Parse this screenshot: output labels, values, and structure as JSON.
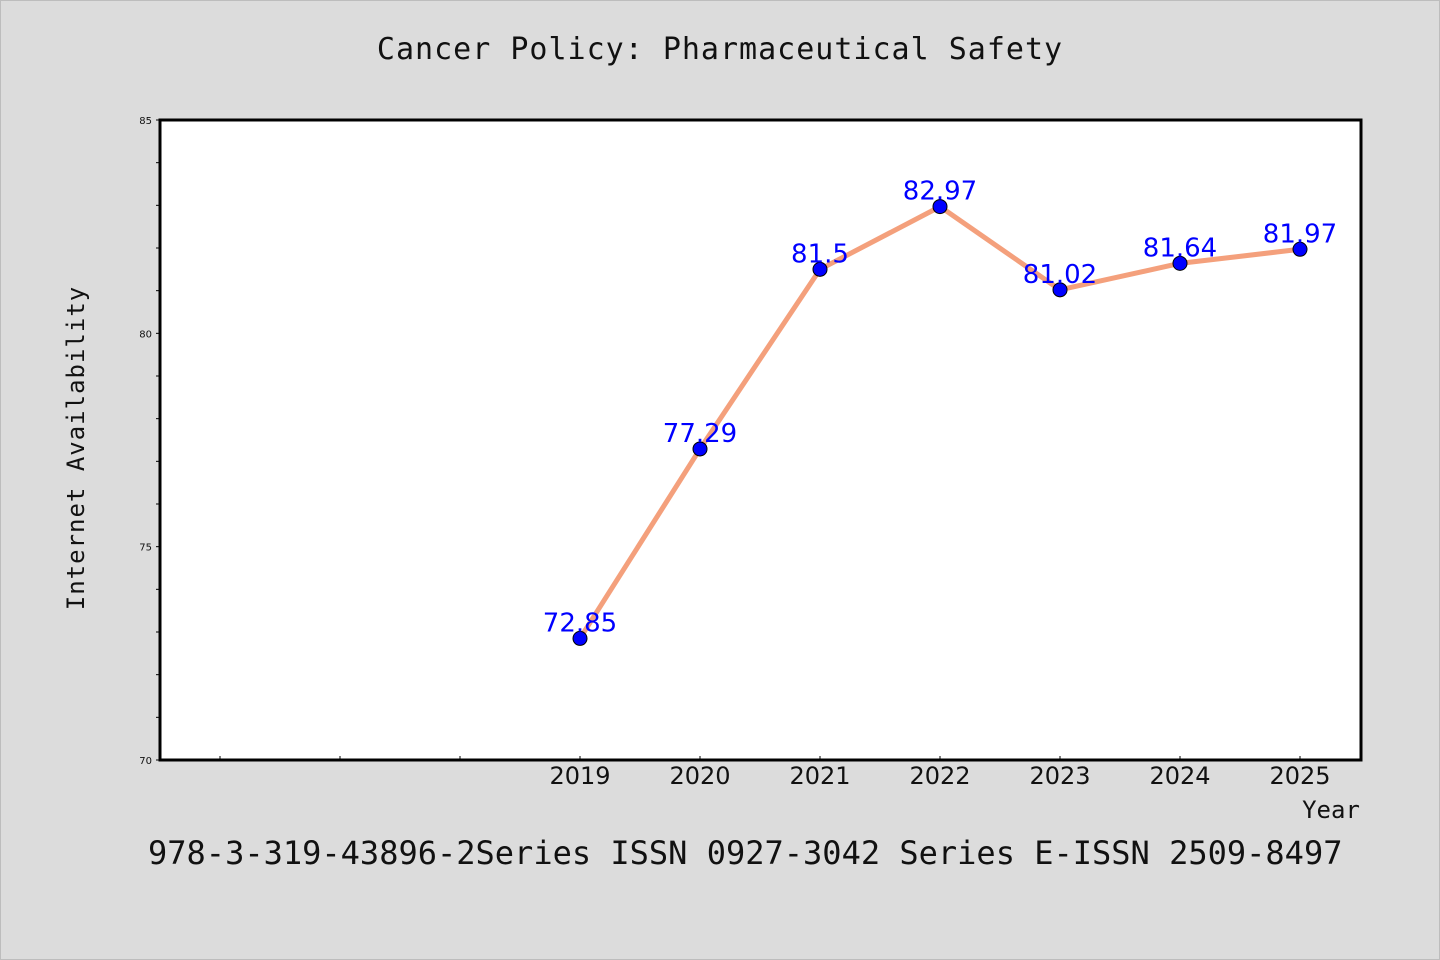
{
  "chart_data": {
    "type": "line",
    "title": "Cancer Policy: Pharmaceutical Safety",
    "xlabel": "Year",
    "ylabel": "Internet Availability",
    "x": [
      "2019",
      "2020",
      "2021",
      "2022",
      "2023",
      "2024",
      "2025"
    ],
    "series": [
      {
        "values": [
          72.85,
          77.29,
          81.5,
          82.97,
          81.02,
          81.64,
          81.97
        ],
        "data_labels": [
          "72.85",
          "77.29",
          "81.5",
          "82.97",
          "81.02",
          "81.64",
          "81.97"
        ],
        "line_color": "#f4a07c",
        "marker_color": "#0000ff"
      }
    ],
    "ylim": [
      70,
      85
    ],
    "y_ticks": [
      "70",
      "75",
      "80",
      "85"
    ],
    "grid": false,
    "legend": "none"
  },
  "footer": "978-3-319-43896-2Series ISSN 0927-3042 Series E-ISSN 2509-8497",
  "colors": {
    "background": "#dcdcdc",
    "plot_background": "#ffffff",
    "label_color": "#0000ff"
  }
}
